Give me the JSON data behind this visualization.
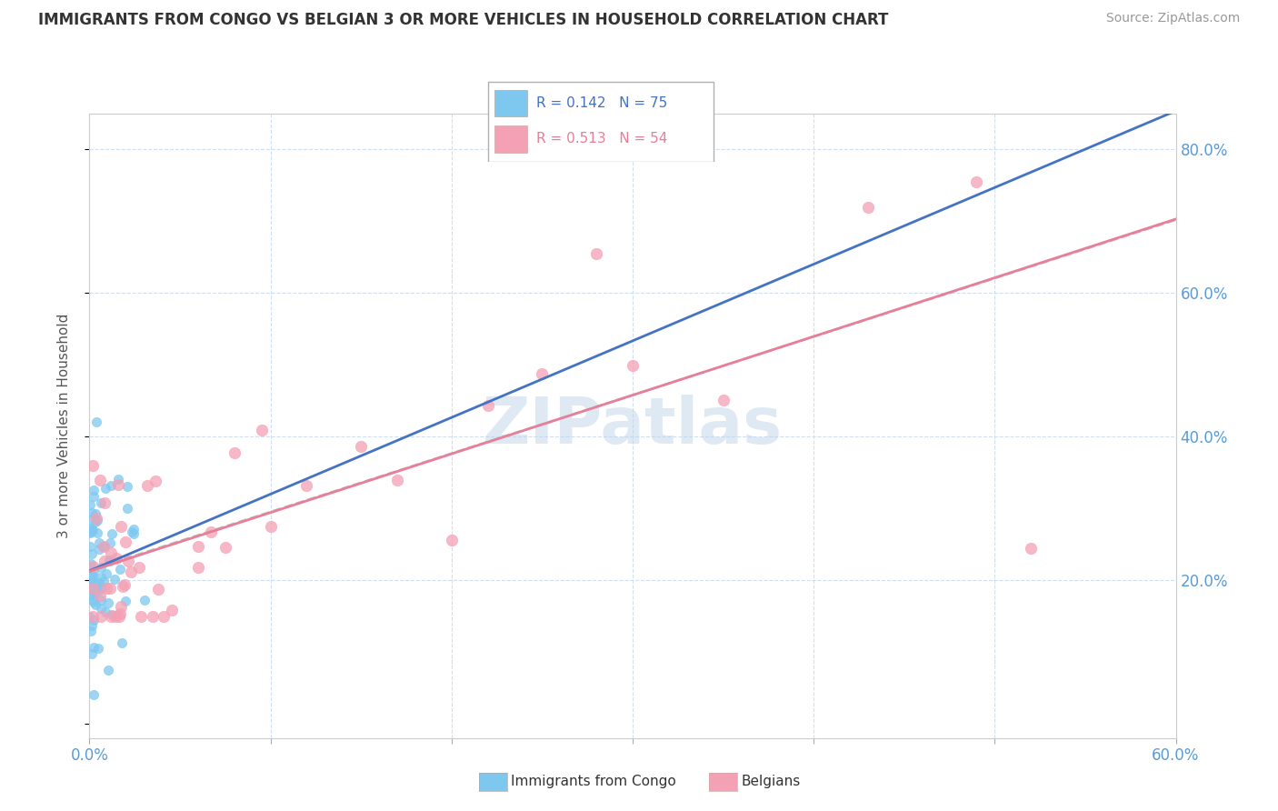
{
  "title": "IMMIGRANTS FROM CONGO VS BELGIAN 3 OR MORE VEHICLES IN HOUSEHOLD CORRELATION CHART",
  "source": "Source: ZipAtlas.com",
  "xlim": [
    0.0,
    0.6
  ],
  "ylim": [
    -0.02,
    0.85
  ],
  "watermark": "ZIPatlas",
  "congo_R": 0.142,
  "congo_N": 75,
  "belgian_R": 0.513,
  "belgian_N": 54,
  "bg_color": "#ffffff",
  "grid_color": "#d0dff0",
  "congo_color": "#7ec8f0",
  "belgian_color": "#f4a0b5",
  "blue_line_color": "#4472c4",
  "pink_line_color": "#e87f99",
  "gray_dash_color": "#bbbbbb",
  "ytick_positions": [
    0.0,
    0.2,
    0.4,
    0.6,
    0.8
  ],
  "ytick_labels": [
    "",
    "20.0%",
    "40.0%",
    "60.0%",
    "80.0%"
  ],
  "xtick_positions": [
    0.0,
    0.1,
    0.2,
    0.3,
    0.4,
    0.5,
    0.6
  ],
  "xtick_labels": [
    "0.0%",
    "",
    "",
    "",
    "",
    "",
    "60.0%"
  ],
  "ylabel": "3 or more Vehicles in Household",
  "xlabel_bottom_left": "0.0%",
  "xlabel_bottom_right": "60.0%"
}
